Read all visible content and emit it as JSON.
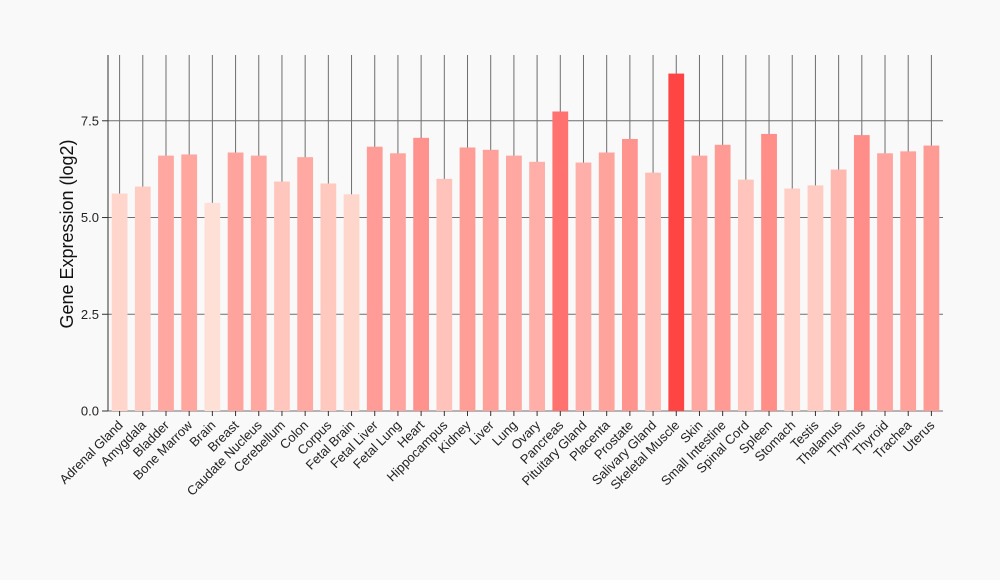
{
  "chart_data": {
    "type": "bar",
    "ylabel": "Gene Expression (log2)",
    "xlabel": "",
    "ylim": [
      0,
      9.2
    ],
    "yticks": [
      0.0,
      2.5,
      5.0,
      7.5
    ],
    "ytick_labels": [
      "0.0",
      "2.5",
      "5.0",
      "7.5"
    ],
    "categories": [
      "Adrenal Gland",
      "Amygdala",
      "Bladder",
      "Bone Marrow",
      "Brain",
      "Breast",
      "Caudate Nucleus",
      "Cerebellum",
      "Colon",
      "Corpus",
      "Fetal Brain",
      "Fetal Liver",
      "Fetal Lung",
      "Heart",
      "Hippocampus",
      "Kidney",
      "Liver",
      "Lung",
      "Ovary",
      "Pancreas",
      "Pituitary Gland",
      "Placenta",
      "Prostate",
      "Salivary Gland",
      "Skeletal Muscle",
      "Skin",
      "Small Intestine",
      "Spinal Cord",
      "Spleen",
      "Stomach",
      "Testis",
      "Thalamus",
      "Thymus",
      "Thyroid",
      "Trachea",
      "Uterus"
    ],
    "values": [
      5.62,
      5.8,
      6.6,
      6.63,
      5.38,
      6.68,
      6.6,
      5.93,
      6.56,
      5.88,
      5.6,
      6.83,
      6.66,
      7.06,
      6.0,
      6.81,
      6.75,
      6.6,
      6.44,
      7.74,
      6.42,
      6.68,
      7.03,
      6.16,
      8.72,
      6.6,
      6.88,
      5.98,
      7.16,
      5.75,
      5.83,
      6.24,
      7.13,
      6.66,
      6.71,
      6.86
    ],
    "grid": true,
    "color_scale": {
      "low": "#ffe0d6",
      "high": "#ff4444"
    }
  }
}
